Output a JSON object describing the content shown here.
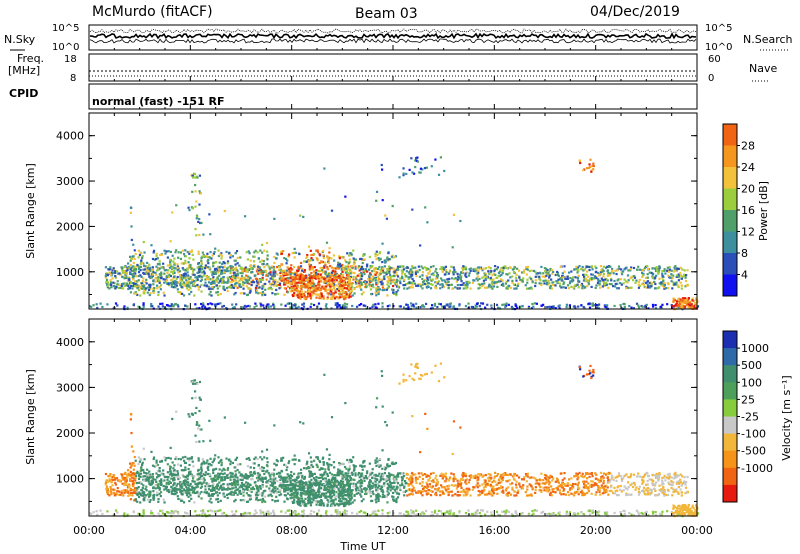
{
  "header": {
    "station": "McMurdo (fitACF)",
    "beam": "Beam 03",
    "date": "04/Dec/2019"
  },
  "top_panels": {
    "nsky_label": "N.Sky",
    "nsearch_label": "N.Search",
    "nsky_ticks": [
      "10^5",
      "10^0"
    ],
    "nsearch_ticks": [
      "10^5",
      "10^0"
    ],
    "freq_label_1": "Freq.",
    "freq_label_2": "[MHz]",
    "freq_ticks": [
      "18",
      "8"
    ],
    "nave_label": "Nave",
    "nave_ticks": [
      "60",
      "0"
    ],
    "cpid_label": "CPID",
    "cpid_text": "normal (fast) -151 RF"
  },
  "chart_data": [
    {
      "type": "heatmap",
      "name": "power",
      "ylabel": "Slant Range [km]",
      "xlabel": "Time UT",
      "x_ticks": [
        "00:00",
        "04:00",
        "08:00",
        "12:00",
        "16:00",
        "20:00",
        "00:00"
      ],
      "y_ticks": [
        "1000",
        "2000",
        "3000",
        "4000"
      ],
      "xlim_hours": [
        0,
        24
      ],
      "ylim_km": [
        180,
        4500
      ],
      "colorbar": {
        "label": "Power [dB]",
        "ticks": [
          "4",
          "8",
          "12",
          "16",
          "20",
          "24",
          "28"
        ],
        "colors": [
          "#1010f0",
          "#2b4fb8",
          "#3d8f9f",
          "#4f9f6a",
          "#9ccd3c",
          "#f2c23a",
          "#f5961e",
          "#f06414",
          "#e41a0e"
        ]
      },
      "features": [
        {
          "t0": 1.0,
          "t1": 23.5,
          "r0": 600,
          "r1": 1250,
          "level": "moderate"
        },
        {
          "t0": 7.5,
          "t1": 10.5,
          "r0": 450,
          "r1": 1000,
          "level": "high"
        },
        {
          "t0": 12.5,
          "t1": 14.0,
          "r0": 3200,
          "r1": 3500,
          "level": "low"
        },
        {
          "t0": 19.3,
          "t1": 19.8,
          "r0": 3200,
          "r1": 3500,
          "level": "high"
        },
        {
          "t0": 23.0,
          "t1": 24.0,
          "r0": 180,
          "r1": 500,
          "level": "high"
        }
      ]
    },
    {
      "type": "heatmap",
      "name": "velocity",
      "ylabel": "Slant Range [km]",
      "xlabel": "Time UT",
      "x_ticks": [
        "00:00",
        "04:00",
        "08:00",
        "12:00",
        "16:00",
        "20:00",
        "00:00"
      ],
      "y_ticks": [
        "1000",
        "2000",
        "3000",
        "4000"
      ],
      "xlim_hours": [
        0,
        24
      ],
      "ylim_km": [
        180,
        4500
      ],
      "colorbar": {
        "label": "Velocity [m s⁻¹]",
        "ticks": [
          "1000",
          "500",
          "100",
          "25",
          "-25",
          "-100",
          "-500",
          "-1000"
        ],
        "colors": [
          "#1c2fb0",
          "#2f6aa8",
          "#3f8f6f",
          "#4e9f5a",
          "#86cc3c",
          "#c8c8c8",
          "#f2b63a",
          "#f59418",
          "#f06414",
          "#e61a0e"
        ]
      }
    }
  ]
}
